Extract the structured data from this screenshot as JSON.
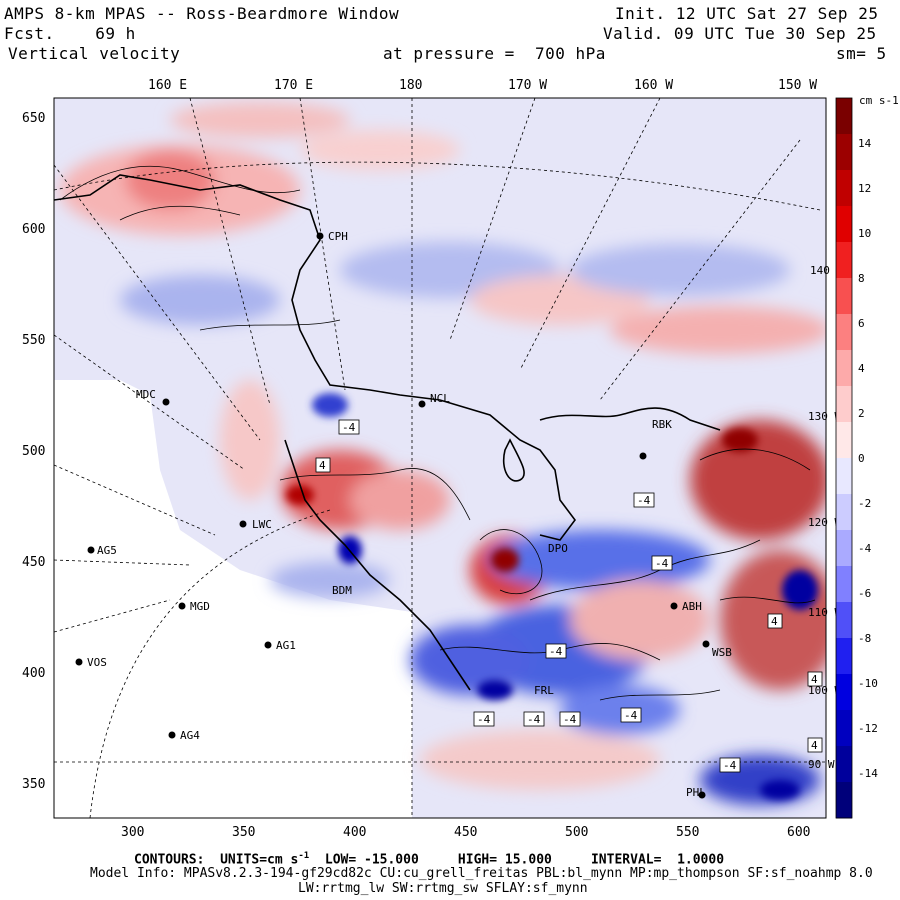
{
  "header": {
    "title": "AMPS 8-km MPAS -- Ross-Beardmore Window",
    "forecast": "Fcst.    69 h",
    "field": "Vertical velocity",
    "pressure": "at pressure =  700 hPa",
    "init": "Init. 12 UTC Sat 27 Sep 25",
    "valid": "Valid. 09 UTC Tue 30 Sep 25",
    "smoothing": "sm= 5"
  },
  "lon_labels": [
    "160 E",
    "170 E",
    "180",
    "170 W",
    "160 W",
    "150 W"
  ],
  "x_ticks": [
    "300",
    "350",
    "400",
    "450",
    "500",
    "550",
    "600"
  ],
  "y_ticks": [
    "650",
    "600",
    "550",
    "500",
    "450",
    "400",
    "350"
  ],
  "stations": [
    {
      "name": "CPH"
    },
    {
      "name": "MDC"
    },
    {
      "name": "NCL"
    },
    {
      "name": "RBK"
    },
    {
      "name": "LWC"
    },
    {
      "name": "AG5"
    },
    {
      "name": "MGD"
    },
    {
      "name": "AG1"
    },
    {
      "name": "VOS"
    },
    {
      "name": "AG4"
    },
    {
      "name": "DPO"
    },
    {
      "name": "WSB"
    },
    {
      "name": "PHL"
    },
    {
      "name": "BDM"
    },
    {
      "name": "FRL"
    },
    {
      "name": "ABH"
    }
  ],
  "map_lon_labels": [
    "140 W",
    "130 W",
    "120 W",
    "110 W",
    "100 W",
    "90 W"
  ],
  "contour_labels": [
    "-4",
    "-4",
    "4",
    "-4",
    "-4",
    "-4",
    "-4",
    "-4",
    "4",
    "4",
    "-4",
    "-4",
    "4"
  ],
  "colorbar": {
    "unit": "cm s-1",
    "labels": [
      "14",
      "12",
      "10",
      "8",
      "6",
      "4",
      "2",
      "0",
      "-2",
      "-4",
      "-6",
      "-8",
      "-10",
      "-12",
      "-14"
    ],
    "colors": [
      "#7a0000",
      "#9c0000",
      "#c00000",
      "#e00000",
      "#f02020",
      "#f85050",
      "#fc8080",
      "#fdaaaa",
      "#fecccc",
      "#ffe8e8",
      "#e8e8ff",
      "#ccccff",
      "#aaaaff",
      "#8080ff",
      "#5050f8",
      "#2020f0",
      "#0000e0",
      "#0000c0",
      "#00009c",
      "#00007a"
    ]
  },
  "footer": {
    "contours_prefix": "CONTOURS:  UNITS=cm s",
    "contours_rest": "  LOW= -15.000     HIGH= 15.000     INTERVAL=  1.0000",
    "model_info": "Model Info: MPASv8.2.3-194-gf29cd82c CU:cu_grell_freitas PBL:bl_mynn MP:mp_thompson SF:sf_noahmp 8.0",
    "physics": "LW:rrtmg_lw SW:rrtmg_sw SFLAY:sf_mynn"
  }
}
